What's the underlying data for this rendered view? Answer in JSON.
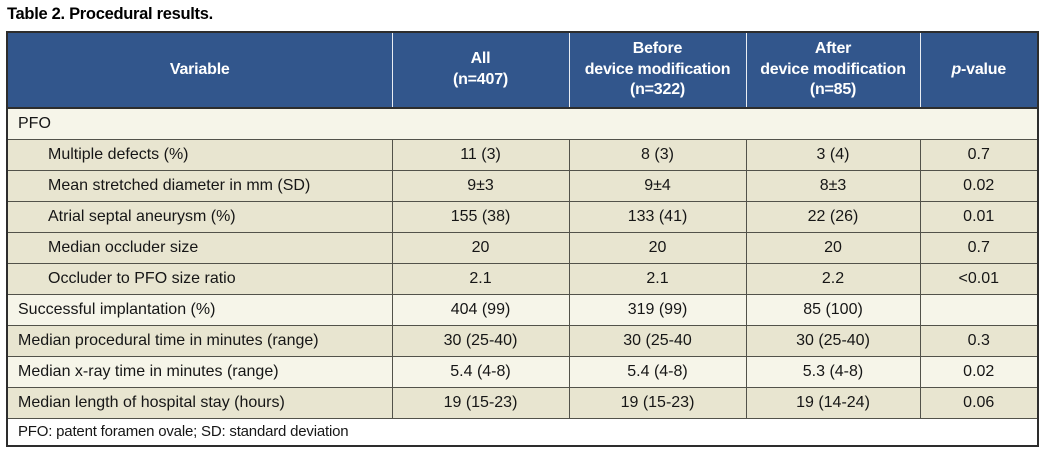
{
  "title": "Table 2. Procedural results.",
  "colors": {
    "header_bg": "#32568c",
    "header_text": "#ffffff",
    "row_beige": "#e8e5d0",
    "row_cream": "#f6f5e9",
    "border_dark": "#2d2d2d"
  },
  "table": {
    "header": {
      "variable": "Variable",
      "all": "All\n(n=407)",
      "before": "Before\ndevice modification\n(n=322)",
      "after": "After\ndevice modification\n(n=85)",
      "p_italic": "p",
      "p_rest": "-value"
    },
    "rows": [
      {
        "label": "PFO",
        "values": [
          "",
          "",
          "",
          ""
        ]
      },
      {
        "label": "Multiple defects (%)",
        "values": [
          "11 (3)",
          "8 (3)",
          "3 (4)",
          "0.7"
        ]
      },
      {
        "label": "Mean stretched diameter in mm (SD)",
        "values": [
          "9±3",
          "9±4",
          "8±3",
          "0.02"
        ]
      },
      {
        "label": "Atrial septal aneurysm (%)",
        "values": [
          "155 (38)",
          "133 (41)",
          "22 (26)",
          "0.01"
        ]
      },
      {
        "label": "Median occluder size",
        "values": [
          "20",
          "20",
          "20",
          "0.7"
        ]
      },
      {
        "label": "Occluder to PFO size ratio",
        "values": [
          "2.1",
          "2.1",
          "2.2",
          "<0.01"
        ]
      },
      {
        "label": "Successful implantation (%)",
        "values": [
          "404 (99)",
          "319 (99)",
          "85 (100)",
          ""
        ]
      },
      {
        "label": "Median procedural time in minutes (range)",
        "values": [
          "30 (25-40)",
          "30 (25-40",
          "30 (25-40)",
          "0.3"
        ]
      },
      {
        "label": "Median x-ray time in minutes (range)",
        "values": [
          "5.4 (4-8)",
          "5.4 (4-8)",
          "5.3 (4-8)",
          "0.02"
        ]
      },
      {
        "label": "Median length of hospital stay (hours)",
        "values": [
          "19 (15-23)",
          "19 (15-23)",
          "19 (14-24)",
          "0.06"
        ]
      }
    ],
    "footnote": "PFO: patent foramen ovale; SD: standard deviation"
  }
}
